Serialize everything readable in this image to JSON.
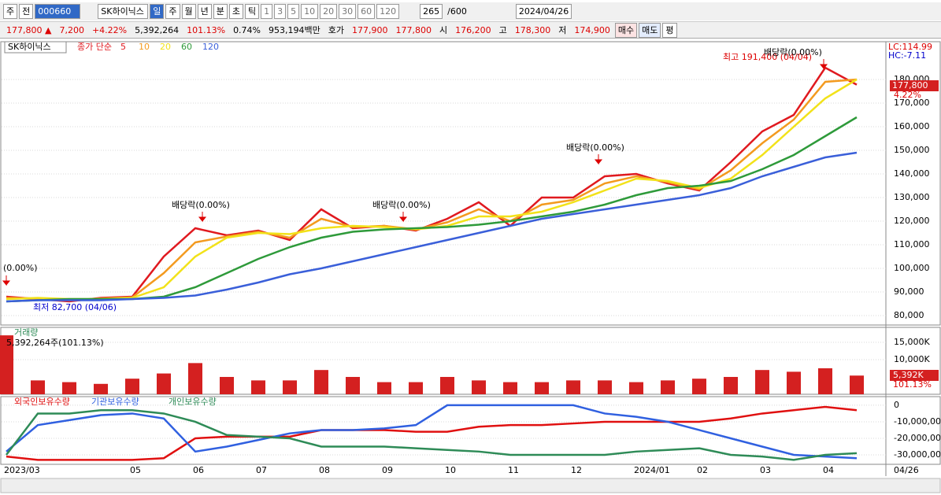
{
  "toolbar": {
    "market": "주",
    "prefix": "전",
    "code": "000660",
    "name": "SK하이닉스",
    "periods": [
      "일",
      "주",
      "월",
      "년",
      "분",
      "초",
      "틱"
    ],
    "intervals": [
      "1",
      "3",
      "5",
      "10",
      "20",
      "30",
      "60",
      "120"
    ],
    "count": "265",
    "max": "/600",
    "date": "2024/04/26"
  },
  "quote": {
    "price": "177,800 ▲",
    "change": "7,200",
    "rate": "+4.22%",
    "volume": "5,392,264",
    "volume_ratio": "101.13%",
    "turnover": "0.74%",
    "amount": "953,194백만",
    "bid_label": "호가",
    "ask": "177,900",
    "bid": "177,800",
    "open_label": "시",
    "open": "176,200",
    "high_label": "고",
    "high": "178,300",
    "low_label": "저",
    "low": "174,900",
    "buy": "매수",
    "sell": "매도",
    "avg": "평"
  },
  "chart_data": [
    {
      "type": "line",
      "title": "SK하이닉스",
      "subtitle": "종가 단순",
      "series": [
        {
          "name": "5",
          "color": "#e0191f",
          "values": [
            88000,
            87000,
            86000,
            87500,
            88000,
            105000,
            117000,
            114000,
            116000,
            112000,
            125000,
            117000,
            118000,
            116000,
            121000,
            128000,
            118000,
            130000,
            130000,
            139000,
            140000,
            136000,
            133000,
            145000,
            158000,
            165000,
            185000,
            177800
          ]
        },
        {
          "name": "10",
          "color": "#f39a1f",
          "values": [
            87500,
            87200,
            86500,
            87200,
            87700,
            98000,
            111000,
            113500,
            115500,
            113000,
            121000,
            117500,
            118000,
            116500,
            119500,
            125000,
            120000,
            127000,
            129000,
            136000,
            139000,
            136500,
            133500,
            141500,
            153000,
            163000,
            179000,
            180000
          ]
        },
        {
          "name": "20",
          "color": "#f2e21a",
          "values": [
            87000,
            87500,
            87000,
            87000,
            87500,
            92000,
            105000,
            113000,
            115000,
            114500,
            117000,
            118000,
            117500,
            116500,
            118000,
            122000,
            122000,
            124000,
            128000,
            133000,
            138000,
            137000,
            134000,
            138000,
            148000,
            160000,
            172000,
            180000
          ]
        },
        {
          "name": "60",
          "color": "#2e9a3a",
          "values": [
            86000,
            86500,
            87000,
            87000,
            87000,
            88000,
            92000,
            98000,
            104000,
            109000,
            113000,
            115500,
            116500,
            117000,
            117500,
            118500,
            120000,
            122000,
            124000,
            127000,
            131000,
            134000,
            135000,
            137000,
            142000,
            148000,
            156000,
            164000
          ]
        },
        {
          "name": "120",
          "color": "#3a5fd9",
          "values": [
            86000,
            86500,
            86500,
            86500,
            87000,
            87500,
            88500,
            91000,
            94000,
            97500,
            100000,
            103000,
            106000,
            109000,
            112000,
            115000,
            118000,
            121000,
            123000,
            125000,
            127000,
            129000,
            131000,
            134000,
            139000,
            143000,
            147000,
            149000
          ]
        }
      ],
      "ylim": [
        76000,
        196000
      ],
      "yticks": [
        {
          "value": 80000,
          "label": "80,000"
        },
        {
          "value": 90000,
          "label": "90,000"
        },
        {
          "value": 100000,
          "label": "100,000"
        },
        {
          "value": 110000,
          "label": "110,000"
        },
        {
          "value": 120000,
          "label": "120,000"
        },
        {
          "value": 130000,
          "label": "130,000"
        },
        {
          "value": 140000,
          "label": "140,000"
        },
        {
          "value": 150000,
          "label": "150,000"
        },
        {
          "value": 160000,
          "label": "160,000"
        },
        {
          "value": 170000,
          "label": "170,000"
        },
        {
          "value": 180000,
          "label": "180,000"
        }
      ],
      "grid": true,
      "annotations": [
        "최고 191,400 (04/04)",
        "최저 82,700 (04/06)",
        "(0.00%)",
        "배당락(0.00%)",
        "배당락(0.00%)",
        "배당락(0.00%)",
        "배당락(0.00%)",
        "LC:114.99",
        "HC:-7.11",
        "177,800",
        "4.22%"
      ]
    },
    {
      "type": "bar",
      "title": "거래량",
      "color": "#d42020",
      "values": [
        17000000,
        4000000,
        3500000,
        3000000,
        4500000,
        6000000,
        9000000,
        5000000,
        4000000,
        4000000,
        7000000,
        5000000,
        3500000,
        3500000,
        5000000,
        4000000,
        3500000,
        3500000,
        4000000,
        4000000,
        3500000,
        4000000,
        4500000,
        5000000,
        7000000,
        6500000,
        7500000,
        5392264
      ],
      "ylim": [
        0,
        19300000
      ],
      "yticks": [
        {
          "value": 10000000,
          "label": "10,000K"
        },
        {
          "value": 15000000,
          "label": "15,000K"
        }
      ],
      "grid": true,
      "annotations": [
        "5,392,264주(101.13%)",
        "5,392K",
        "101.13%"
      ]
    },
    {
      "type": "line",
      "categories": [
        "2023/03",
        null,
        null,
        null,
        "05",
        null,
        "06",
        null,
        "07",
        null,
        "08",
        null,
        "09",
        null,
        "10",
        null,
        "11",
        null,
        "12",
        null,
        "2024/01",
        null,
        "02",
        null,
        "03",
        null,
        "04",
        null
      ],
      "last_date": "04/26",
      "series": [
        {
          "name": "외국인보유수량",
          "color": "#e01010",
          "values": [
            -31000000,
            -33000000,
            -33000000,
            -33000000,
            -33000000,
            -32000000,
            -20000000,
            -19000000,
            -19000000,
            -19000000,
            -15000000,
            -15000000,
            -15000000,
            -16000000,
            -16000000,
            -13000000,
            -12000000,
            -12000000,
            -11000000,
            -10000000,
            -10000000,
            -10000000,
            -10000000,
            -8000000,
            -5000000,
            -3000000,
            -1000000,
            -3000000
          ]
        },
        {
          "name": "기관보유수량",
          "color": "#3060e0",
          "values": [
            -28000000,
            -12000000,
            -9000000,
            -6000000,
            -5000000,
            -8000000,
            -28000000,
            -25000000,
            -21000000,
            -17000000,
            -15000000,
            -15000000,
            -14000000,
            -12000000,
            0,
            0,
            0,
            0,
            0,
            -5000000,
            -7000000,
            -10000000,
            -15000000,
            -20000000,
            -25000000,
            -30000000,
            -31000000,
            -32000000
          ]
        },
        {
          "name": "개인보유수량",
          "color": "#2e8b57",
          "values": [
            -30000000,
            -5000000,
            -5000000,
            -3000000,
            -3000000,
            -5000000,
            -10000000,
            -18000000,
            -19000000,
            -20000000,
            -25000000,
            -25000000,
            -25000000,
            -26000000,
            -27000000,
            -28000000,
            -30000000,
            -30000000,
            -30000000,
            -30000000,
            -28000000,
            -27000000,
            -26000000,
            -30000000,
            -31000000,
            -33000000,
            -30000000,
            -29000000
          ]
        }
      ],
      "ylim": [
        -35700000,
        5200000
      ],
      "yticks": [
        0,
        {
          "value": -10000000,
          "label": "-10,000,000"
        },
        {
          "value": -20000000,
          "label": "-20,000,000"
        },
        {
          "value": -30000000,
          "label": "-30,000,000"
        }
      ],
      "grid": true
    }
  ]
}
